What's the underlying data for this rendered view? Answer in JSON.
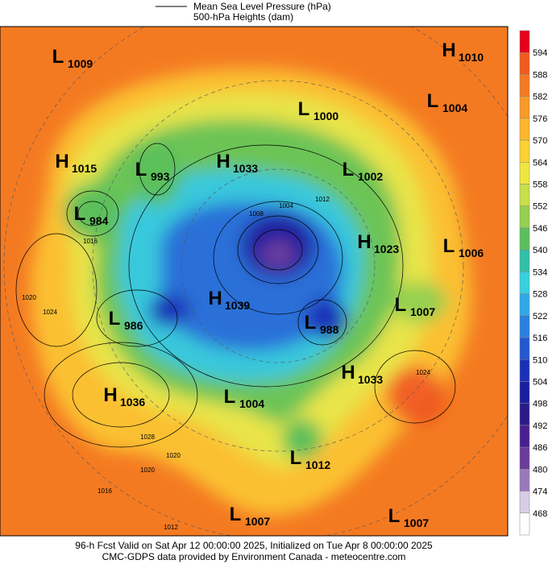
{
  "legend": {
    "msl_label": "Mean Sea Level Pressure (hPa)",
    "heights_label": "500-hPa Heights (dam)"
  },
  "colorbar": {
    "ticks": [
      594,
      588,
      582,
      576,
      570,
      564,
      558,
      552,
      546,
      540,
      534,
      528,
      522,
      516,
      510,
      504,
      498,
      492,
      486,
      480,
      474,
      468
    ],
    "colors": [
      "#e8001c",
      "#f25a1e",
      "#f47a22",
      "#f89a26",
      "#fbb62c",
      "#fdd232",
      "#f0e640",
      "#c8e04a",
      "#96d050",
      "#5cc05a",
      "#30c0a8",
      "#38d0e0",
      "#30a8e8",
      "#2a80e0",
      "#2458d0",
      "#1a30b8",
      "#1a1ea0",
      "#2a1a88",
      "#4a2090",
      "#6a3c9c",
      "#9a78bc",
      "#d8cce6",
      "#ffffff"
    ]
  },
  "centers": [
    {
      "kind": "L",
      "value": 1009
    },
    {
      "kind": "H",
      "value": 1010
    },
    {
      "kind": "L",
      "value": 1000
    },
    {
      "kind": "L",
      "value": 1004
    },
    {
      "kind": "H",
      "value": 1015
    },
    {
      "kind": "L",
      "value": 993
    },
    {
      "kind": "H",
      "value": 1033
    },
    {
      "kind": "L",
      "value": 1002
    },
    {
      "kind": "L",
      "value": 984
    },
    {
      "kind": "H",
      "value": 1023
    },
    {
      "kind": "L",
      "value": 1006
    },
    {
      "kind": "H",
      "value": 1039
    },
    {
      "kind": "L",
      "value": 1007
    },
    {
      "kind": "L",
      "value": 986
    },
    {
      "kind": "L",
      "value": 988
    },
    {
      "kind": "H",
      "value": 1033
    },
    {
      "kind": "H",
      "value": 1036
    },
    {
      "kind": "L",
      "value": 1004
    },
    {
      "kind": "L",
      "value": 1012
    },
    {
      "kind": "L",
      "value": 1007
    },
    {
      "kind": "L",
      "value": 1007
    }
  ],
  "isobar_labels": [
    1008,
    1004,
    1012,
    1016,
    1020,
    1024,
    1028,
    1020,
    1016,
    1012,
    1020,
    1024
  ],
  "footer": [
    "96-h Fcst Valid on Sat Apr 12 00:00:00 2025, Initialized on Tue Apr  8 00:00:00 2025",
    "CMC-GDPS data provided by Environment Canada - meteocentre.com"
  ]
}
